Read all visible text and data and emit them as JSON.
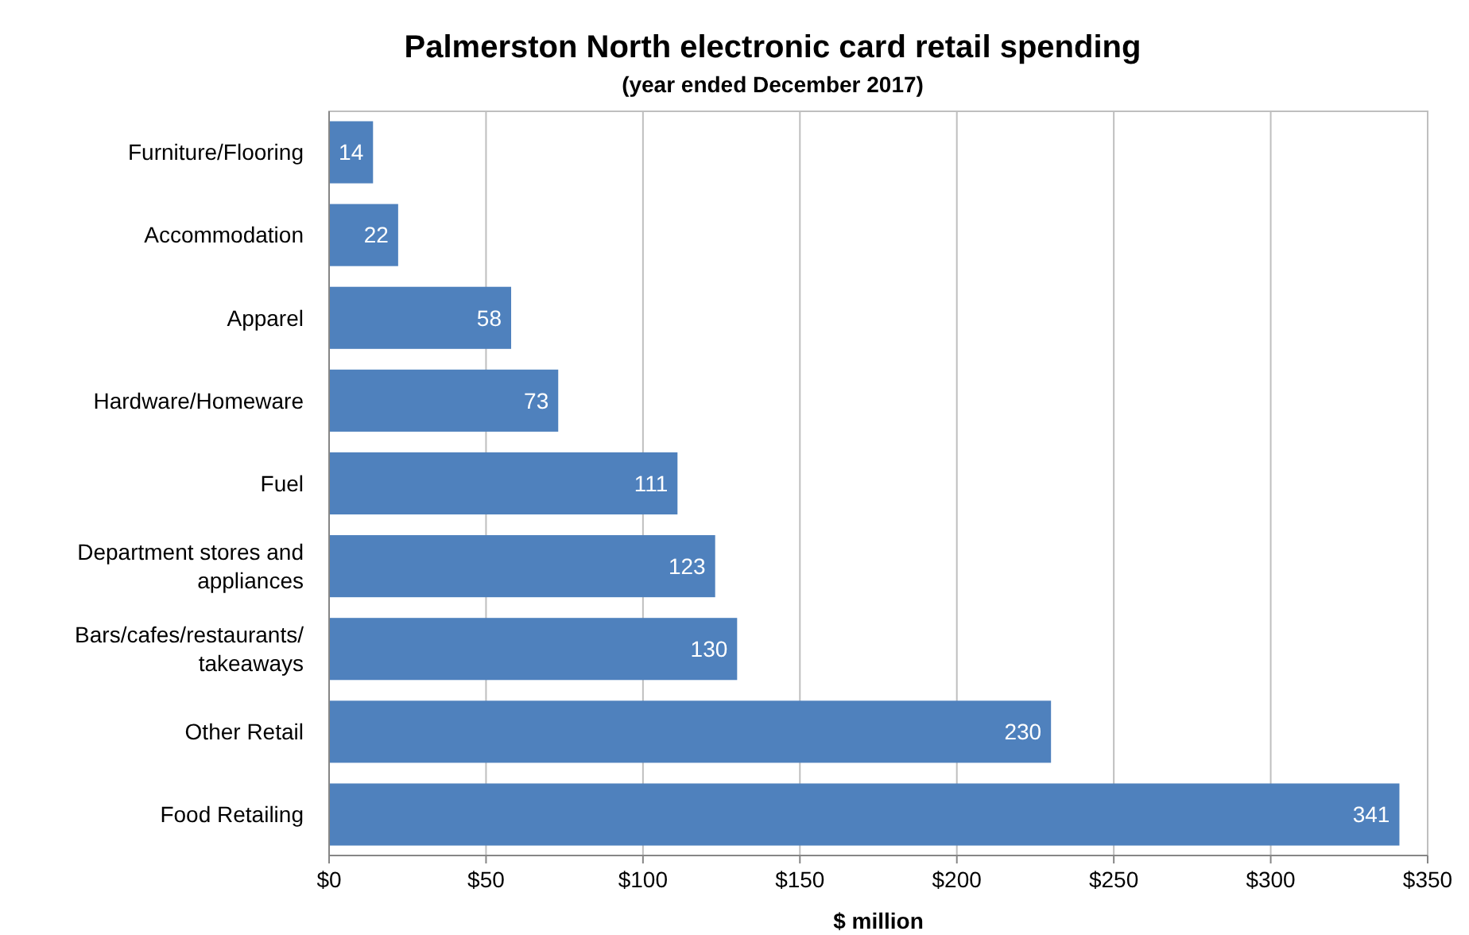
{
  "chart_data": {
    "type": "bar",
    "orientation": "horizontal",
    "title": "Palmerston North electronic card retail spending",
    "subtitle": "(year ended December 2017)",
    "xlabel": "$ million",
    "categories": [
      "Furniture/Flooring",
      "Accommodation",
      "Apparel",
      "Hardware/Homeware",
      "Fuel",
      "Department stores and appliances",
      "Bars/cafes/restaurants/takeaways",
      "Other Retail",
      "Food Retailing"
    ],
    "values": [
      14,
      22,
      58,
      73,
      111,
      123,
      130,
      230,
      341
    ],
    "color": "#4f81bd",
    "data_labels": true,
    "grid": "x",
    "xlim": [
      0,
      350
    ],
    "xticks": [
      {
        "value": 0,
        "label": "$0"
      },
      {
        "value": 50,
        "label": "$50"
      },
      {
        "value": 100,
        "label": "$100"
      },
      {
        "value": 150,
        "label": "$150"
      },
      {
        "value": 200,
        "label": "$200"
      },
      {
        "value": 250,
        "label": "$250"
      },
      {
        "value": 300,
        "label": "$300"
      },
      {
        "value": 350,
        "label": "$350"
      }
    ]
  }
}
